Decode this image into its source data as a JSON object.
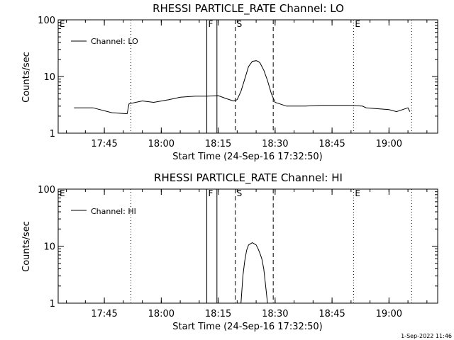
{
  "footer": "1-Sep-2022 11:46",
  "chart_data": [
    {
      "type": "line",
      "title": "RHESSI PARTICLE_RATE Channel: LO",
      "xlabel": "Start Time (24-Sep-16 17:32:50)",
      "ylabel": "Counts/sec",
      "yscale": "log",
      "ylim": [
        1,
        100
      ],
      "xlim": [
        "17:32:50",
        "19:12:50"
      ],
      "xticks": [
        "17:45",
        "18:00",
        "18:15",
        "18:30",
        "18:45",
        "19:00"
      ],
      "yticks": [
        "1",
        "10",
        "100"
      ],
      "legend": {
        "label": "Channel: LO",
        "placement": "top-left"
      },
      "event_markers": [
        {
          "label": "E",
          "time": "17:32:50",
          "style": "dotted"
        },
        {
          "label": "",
          "time": "17:52:00",
          "style": "dotted"
        },
        {
          "label": "F",
          "time": "18:12:00",
          "style": "solid"
        },
        {
          "label": "",
          "time": "18:14:40",
          "style": "solid"
        },
        {
          "label": "S",
          "time": "18:19:30",
          "style": "dashed"
        },
        {
          "label": "",
          "time": "18:29:30",
          "style": "dashed"
        },
        {
          "label": "E",
          "time": "18:50:40",
          "style": "dotted"
        },
        {
          "label": "",
          "time": "19:06:00",
          "style": "dotted"
        }
      ],
      "series": [
        {
          "name": "Channel: LO",
          "x": [
            "17:37:00",
            "17:42:00",
            "17:47:00",
            "17:51:00",
            "17:51:30",
            "17:55:00",
            "17:58:00",
            "18:02:00",
            "18:05:00",
            "18:09:00",
            "18:12:00",
            "18:15:00",
            "18:17:00",
            "18:19:00",
            "18:20:00",
            "18:21:00",
            "18:22:00",
            "18:23:00",
            "18:24:00",
            "18:25:00",
            "18:25:30",
            "18:26:00",
            "18:27:00",
            "18:28:00",
            "18:29:00",
            "18:30:00",
            "18:33:00",
            "18:38:00",
            "18:42:00",
            "18:46:00",
            "18:50:00",
            "18:53:00",
            "18:54:00",
            "19:00:00",
            "19:02:00",
            "19:05:00",
            "19:05:30"
          ],
          "values": [
            2.8,
            2.8,
            2.3,
            2.2,
            3.3,
            3.7,
            3.5,
            3.9,
            4.3,
            4.5,
            4.5,
            4.6,
            4.1,
            3.7,
            3.9,
            5.5,
            9.0,
            15.0,
            18.5,
            19.0,
            18.5,
            17.5,
            13.0,
            8.5,
            5.0,
            3.5,
            3.0,
            3.0,
            3.1,
            3.1,
            3.1,
            3.0,
            2.8,
            2.6,
            2.4,
            2.8,
            2.4
          ]
        }
      ]
    },
    {
      "type": "line",
      "title": "RHESSI PARTICLE_RATE Channel: HI",
      "xlabel": "Start Time (24-Sep-16 17:32:50)",
      "ylabel": "Counts/sec",
      "yscale": "log",
      "ylim": [
        1,
        100
      ],
      "xlim": [
        "17:32:50",
        "19:12:50"
      ],
      "xticks": [
        "17:45",
        "18:00",
        "18:15",
        "18:30",
        "18:45",
        "19:00"
      ],
      "yticks": [
        "1",
        "10",
        "100"
      ],
      "legend": {
        "label": "Channel: HI",
        "placement": "top-left"
      },
      "event_markers": [
        {
          "label": "E",
          "time": "17:32:50",
          "style": "dotted"
        },
        {
          "label": "",
          "time": "17:52:00",
          "style": "dotted"
        },
        {
          "label": "F",
          "time": "18:12:00",
          "style": "solid"
        },
        {
          "label": "",
          "time": "18:14:40",
          "style": "solid"
        },
        {
          "label": "S",
          "time": "18:19:30",
          "style": "dashed"
        },
        {
          "label": "",
          "time": "18:29:30",
          "style": "dashed"
        },
        {
          "label": "E",
          "time": "18:50:40",
          "style": "dotted"
        },
        {
          "label": "",
          "time": "19:06:00",
          "style": "dotted"
        }
      ],
      "series": [
        {
          "name": "Channel: HI",
          "x": [
            "18:21:00",
            "18:21:30",
            "18:22:00",
            "18:22:30",
            "18:23:00",
            "18:23:30",
            "18:24:00",
            "18:24:30",
            "18:25:00",
            "18:25:30",
            "18:26:00",
            "18:26:30",
            "18:27:00",
            "18:27:30",
            "18:28:00"
          ],
          "values": [
            1.0,
            3.0,
            5.5,
            8.5,
            10.5,
            11.0,
            11.5,
            11.0,
            10.5,
            9.0,
            7.5,
            6.0,
            4.0,
            2.0,
            1.0
          ]
        }
      ]
    }
  ]
}
